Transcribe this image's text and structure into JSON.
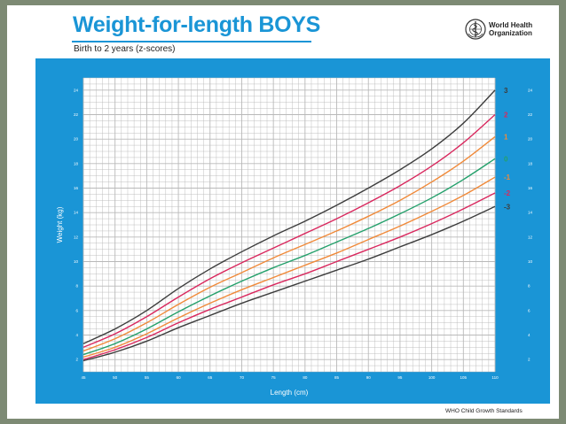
{
  "header": {
    "title": "Weight-for-length BOYS",
    "subtitle": "Birth to 2 years (z-scores)"
  },
  "logo": {
    "line1": "World Health",
    "line2": "Organization",
    "icon": "who-emblem-icon"
  },
  "footer": {
    "text": "WHO Child Growth Standards"
  },
  "colors": {
    "panel": "#1a95d6",
    "grid_bg": "#ffffff",
    "grid_line": "#b9b9b9"
  },
  "chart_data": {
    "type": "line",
    "xlabel": "Length (cm)",
    "ylabel": "Weight (kg)",
    "xlim": [
      45,
      110
    ],
    "ylim": [
      1,
      25
    ],
    "xticks": [
      45,
      50,
      55,
      60,
      65,
      70,
      75,
      80,
      85,
      90,
      95,
      100,
      105,
      110
    ],
    "yticks": [
      2,
      4,
      6,
      8,
      10,
      12,
      14,
      16,
      18,
      20,
      22,
      24
    ],
    "grid": true,
    "x": [
      45,
      50,
      55,
      60,
      65,
      70,
      75,
      80,
      85,
      90,
      95,
      100,
      105,
      110
    ],
    "series": [
      {
        "name": "3",
        "color": "#3d3d3d",
        "values": [
          3.3,
          4.5,
          6.0,
          7.8,
          9.4,
          10.8,
          12.1,
          13.3,
          14.6,
          16.0,
          17.5,
          19.2,
          21.3,
          24.0
        ]
      },
      {
        "name": "2",
        "color": "#d9285e",
        "values": [
          3.0,
          4.1,
          5.5,
          7.1,
          8.6,
          9.9,
          11.1,
          12.3,
          13.5,
          14.8,
          16.2,
          17.8,
          19.7,
          22.0
        ]
      },
      {
        "name": "1",
        "color": "#f08a3a",
        "values": [
          2.7,
          3.7,
          5.0,
          6.5,
          7.9,
          9.1,
          10.3,
          11.4,
          12.5,
          13.7,
          15.0,
          16.5,
          18.2,
          20.2
        ]
      },
      {
        "name": "0",
        "color": "#24a06b",
        "values": [
          2.4,
          3.3,
          4.5,
          5.9,
          7.2,
          8.4,
          9.5,
          10.5,
          11.6,
          12.7,
          13.9,
          15.2,
          16.7,
          18.4
        ]
      },
      {
        "name": "-1",
        "color": "#f08a3a",
        "values": [
          2.2,
          3.0,
          4.1,
          5.4,
          6.6,
          7.7,
          8.7,
          9.7,
          10.7,
          11.8,
          12.9,
          14.1,
          15.4,
          16.9
        ]
      },
      {
        "name": "-2",
        "color": "#d9285e",
        "values": [
          2.0,
          2.8,
          3.8,
          5.0,
          6.1,
          7.1,
          8.1,
          9.0,
          10.0,
          11.0,
          12.0,
          13.1,
          14.3,
          15.6
        ]
      },
      {
        "name": "-3",
        "color": "#3d3d3d",
        "values": [
          1.9,
          2.6,
          3.5,
          4.6,
          5.6,
          6.6,
          7.5,
          8.4,
          9.3,
          10.2,
          11.2,
          12.2,
          13.3,
          14.5
        ]
      }
    ]
  }
}
